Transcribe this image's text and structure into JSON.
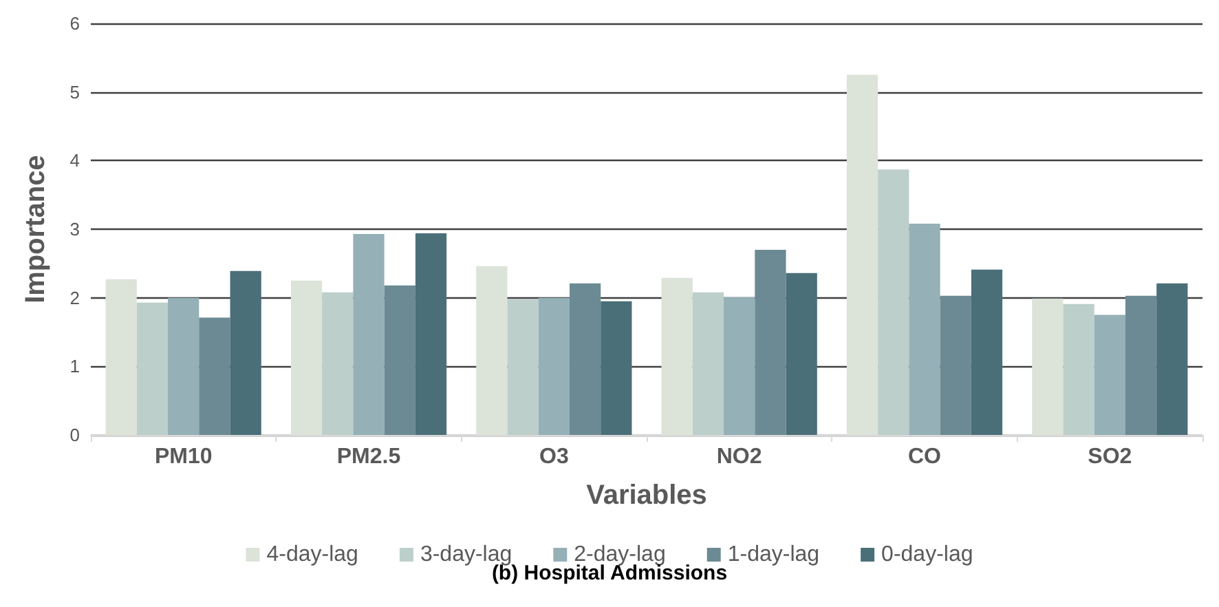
{
  "chart_data": {
    "type": "bar",
    "title": "(b) Hospital Admissions",
    "xlabel": "Variables",
    "ylabel": "Importance",
    "categories": [
      "PM10",
      "PM2.5",
      "O3",
      "NO2",
      "CO",
      "SO2"
    ],
    "series": [
      {
        "name": "4-day-lag",
        "color": "#dce3d9",
        "values": [
          2.27,
          2.25,
          2.46,
          2.29,
          5.25,
          1.99
        ]
      },
      {
        "name": "3-day-lag",
        "color": "#bdcfcb",
        "values": [
          1.93,
          2.08,
          1.98,
          2.08,
          3.87,
          1.91
        ]
      },
      {
        "name": "2-day-lag",
        "color": "#95b0b7",
        "values": [
          2.0,
          2.93,
          2.0,
          2.01,
          3.08,
          1.75
        ]
      },
      {
        "name": "1-day-lag",
        "color": "#6c8a93",
        "values": [
          1.71,
          2.18,
          2.21,
          2.7,
          2.03,
          2.03
        ]
      },
      {
        "name": "0-day-lag",
        "color": "#4a6f79",
        "values": [
          2.39,
          2.94,
          1.95,
          2.36,
          2.41,
          2.21
        ]
      }
    ],
    "ylim": [
      0,
      6
    ],
    "yticks": [
      0,
      1,
      2,
      3,
      4,
      5,
      6
    ],
    "grid": "y",
    "legend": "bottom"
  }
}
